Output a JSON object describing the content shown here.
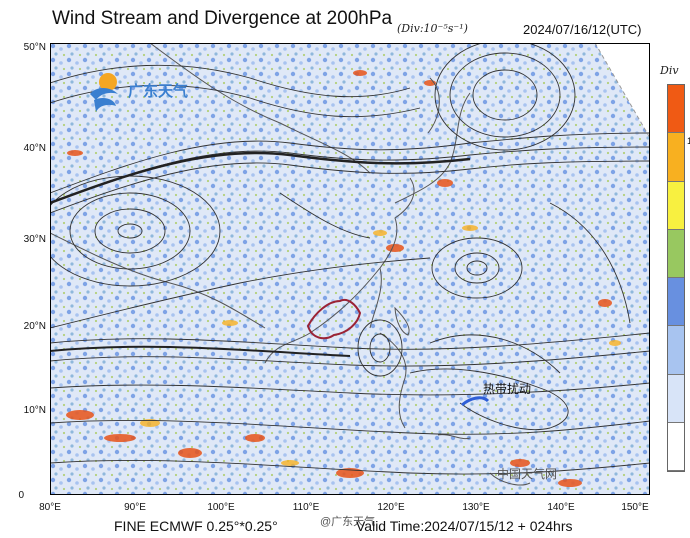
{
  "header": {
    "title": "Wind Stream and Divergence at 200hPa",
    "units": "(Div:10⁻⁵s⁻¹)",
    "valid_top": "2024/07/16/12(UTC)"
  },
  "axes": {
    "y_labels": [
      "50°N",
      "40°N",
      "30°N",
      "20°N",
      "10°N",
      "0"
    ],
    "x_labels": [
      "80°E",
      "90°E",
      "100°E",
      "110°E",
      "120°E",
      "130°E",
      "140°E",
      "150°E"
    ]
  },
  "footer": {
    "model": "FINE ECMWF 0.25°*0.25°",
    "valid_time": "Valid Time:2024/07/15/12 + 024hrs"
  },
  "logo": {
    "text": "广东天气"
  },
  "colorbar": {
    "title": "Div",
    "tick": "1",
    "colors": [
      "#f05a14",
      "#f8b020",
      "#f8f040",
      "#98c860",
      "#6890e0",
      "#a8c4f0",
      "#d8e4f8",
      "#ffffff"
    ]
  },
  "annotations": {
    "storm_label": "热带扰动"
  },
  "watermark": {
    "main": "中国天气网",
    "weibo": "@广东天气"
  }
}
